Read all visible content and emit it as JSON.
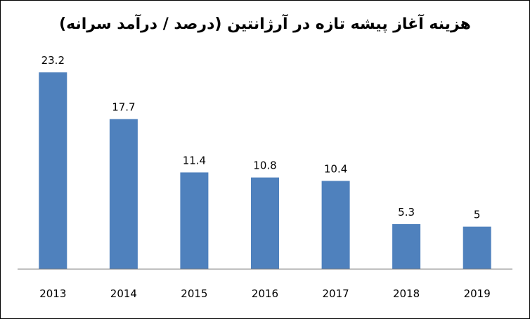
{
  "chart_data": {
    "type": "bar",
    "title": "هزینه آغاز پیشه تازه در آرژانتین (درصد / درآمد سرانه)",
    "xlabel": "",
    "ylabel": "",
    "categories": [
      "2013",
      "2014",
      "2015",
      "2016",
      "2017",
      "2018",
      "2019"
    ],
    "series": [
      {
        "values": [
          23.2,
          17.7,
          11.4,
          10.8,
          10.4,
          5.3,
          5
        ],
        "labels": [
          "23.2",
          "17.7",
          "11.4",
          "10.8",
          "10.4",
          "5.3",
          "5"
        ]
      }
    ],
    "ylim": [
      0,
      25
    ],
    "grid": false,
    "legend": "none",
    "y_axis_visible": false,
    "data_labels": true
  },
  "colors": {
    "bar": "#4f81bd",
    "axis": "#808080",
    "text": "#000000",
    "border": "#000000",
    "background": "#ffffff"
  }
}
